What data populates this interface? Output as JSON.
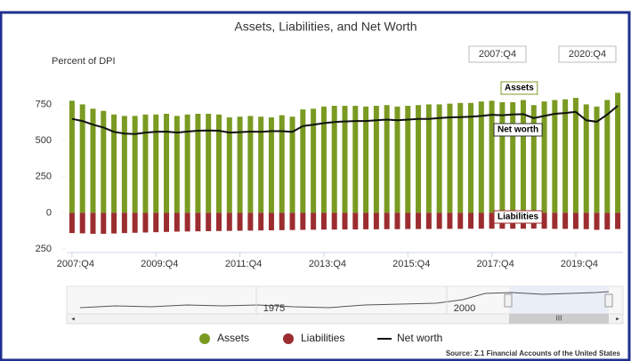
{
  "chart_data": {
    "type": "bar",
    "title": "Assets, Liabilities, and Net Worth",
    "y_label": "Percent of DPI",
    "range_selector": [
      "2007:Q4",
      "2020:Q4"
    ],
    "navigator_labels": [
      "1975",
      "2000"
    ],
    "scrollbar_label": "III",
    "annotations": [
      "Assets",
      "Net worth",
      "Liabilities"
    ],
    "source": "Source: Z.1 Financial Accounts of the United States",
    "categories": [
      "2007:Q4",
      null,
      null,
      null,
      null,
      null,
      null,
      null,
      "2009:Q4",
      null,
      null,
      null,
      null,
      null,
      null,
      null,
      "2011:Q4",
      null,
      null,
      null,
      null,
      null,
      null,
      null,
      "2013:Q4",
      null,
      null,
      null,
      null,
      null,
      null,
      null,
      "2015:Q4",
      null,
      null,
      null,
      null,
      null,
      null,
      null,
      "2017:Q4",
      null,
      null,
      null,
      null,
      null,
      null,
      null,
      "2019:Q4",
      null,
      null,
      null,
      null
    ],
    "ylim": [
      -250,
      900
    ],
    "yticks": [
      {
        "value": -250,
        "label": "250"
      },
      0,
      250,
      500,
      750
    ],
    "grid": false,
    "series": [
      {
        "name": "Assets",
        "type": "bar",
        "color": "#7a9a22",
        "values": [
          775,
          750,
          720,
          705,
          680,
          670,
          670,
          680,
          680,
          685,
          670,
          680,
          685,
          685,
          680,
          660,
          665,
          670,
          665,
          660,
          675,
          665,
          715,
          720,
          735,
          740,
          740,
          740,
          735,
          740,
          745,
          735,
          740,
          745,
          750,
          750,
          755,
          760,
          760,
          770,
          775,
          765,
          765,
          780,
          745,
          770,
          780,
          785,
          795,
          750,
          735,
          780,
          830
        ]
      },
      {
        "name": "Liabilities",
        "type": "bar",
        "color": "#9b2d30",
        "values": [
          -140,
          -142,
          -145,
          -145,
          -143,
          -140,
          -138,
          -136,
          -134,
          -132,
          -130,
          -129,
          -128,
          -127,
          -126,
          -125,
          -124,
          -123,
          -122,
          -121,
          -120,
          -119,
          -118,
          -117,
          -116,
          -116,
          -115,
          -115,
          -114,
          -114,
          -113,
          -113,
          -112,
          -112,
          -112,
          -111,
          -111,
          -111,
          -110,
          -110,
          -110,
          -110,
          -110,
          -110,
          -109,
          -110,
          -111,
          -111,
          -112,
          -113,
          -118,
          -115,
          -112
        ]
      },
      {
        "name": "Net worth",
        "type": "line",
        "color": "#111111",
        "values": [
          650,
          635,
          610,
          590,
          560,
          548,
          545,
          555,
          560,
          562,
          555,
          562,
          568,
          570,
          568,
          555,
          558,
          562,
          560,
          565,
          565,
          560,
          600,
          610,
          620,
          628,
          632,
          635,
          635,
          640,
          645,
          640,
          645,
          650,
          650,
          655,
          660,
          662,
          665,
          670,
          678,
          675,
          680,
          682,
          655,
          670,
          685,
          690,
          698,
          640,
          630,
          680,
          740
        ]
      }
    ]
  }
}
